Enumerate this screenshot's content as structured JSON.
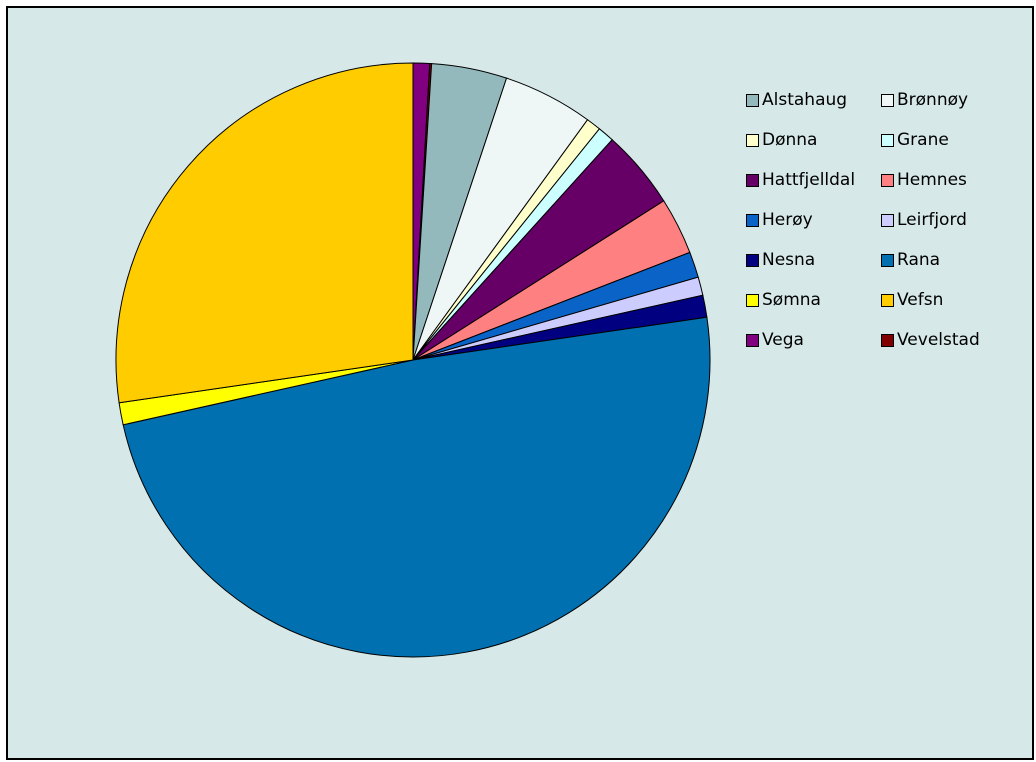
{
  "chart_data": {
    "type": "pie",
    "title": "",
    "start_angle_deg": 0,
    "direction": "clockwise",
    "legend_position": "right",
    "slices": [
      {
        "label": "Vega",
        "value": 0.9,
        "color": "#800080"
      },
      {
        "label": "Vevelstad",
        "value": 0.1,
        "color": "#800000"
      },
      {
        "label": "Alstahaug",
        "value": 4.1,
        "color": "#93b9bd"
      },
      {
        "label": "Brønnøy",
        "value": 4.9,
        "color": "#eef6f6"
      },
      {
        "label": "Dønna",
        "value": 0.8,
        "color": "#ffffcc"
      },
      {
        "label": "Grane",
        "value": 0.9,
        "color": "#ccffff"
      },
      {
        "label": "Hattfjelldal",
        "value": 4.3,
        "color": "#660066"
      },
      {
        "label": "Hemnes",
        "value": 3.1,
        "color": "#ff8080"
      },
      {
        "label": "Herøy",
        "value": 1.4,
        "color": "#0a64c8"
      },
      {
        "label": "Leirfjord",
        "value": 1.0,
        "color": "#ccccff"
      },
      {
        "label": "Nesna",
        "value": 1.2,
        "color": "#000080"
      },
      {
        "label": "Rana",
        "value": 48.8,
        "color": "#0070b0"
      },
      {
        "label": "Sømna",
        "value": 1.2,
        "color": "#ffff00"
      },
      {
        "label": "Vefsn",
        "value": 27.3,
        "color": "#ffcc00"
      }
    ],
    "legend": [
      {
        "label": "Alstahaug",
        "color": "#93b9bd"
      },
      {
        "label": "Brønnøy",
        "color": "#eef6f6"
      },
      {
        "label": "Dønna",
        "color": "#ffffcc"
      },
      {
        "label": "Grane",
        "color": "#ccffff"
      },
      {
        "label": "Hattfjelldal",
        "color": "#660066"
      },
      {
        "label": "Hemnes",
        "color": "#ff8080"
      },
      {
        "label": "Herøy",
        "color": "#0a64c8"
      },
      {
        "label": "Leirfjord",
        "color": "#ccccff"
      },
      {
        "label": "Nesna",
        "color": "#000080"
      },
      {
        "label": "Rana",
        "color": "#0070b0"
      },
      {
        "label": "Sømna",
        "color": "#ffff00"
      },
      {
        "label": "Vefsn",
        "color": "#ffcc00"
      },
      {
        "label": "Vega",
        "color": "#800080"
      },
      {
        "label": "Vevelstad",
        "color": "#800000"
      }
    ]
  },
  "colors": {
    "background": "#d6e8e8",
    "border": "#000000"
  }
}
